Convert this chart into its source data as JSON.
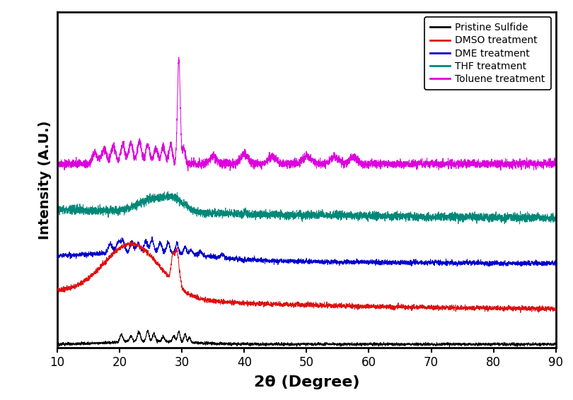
{
  "title": "",
  "xlabel": "2θ (Degree)",
  "ylabel": "Intensity (A.U.)",
  "xlim": [
    10,
    90
  ],
  "legend_labels": [
    "Pristine Sulfide",
    "DMSO treatment",
    "DME treatment",
    "THF treatment",
    "Toluene treatment"
  ],
  "legend_colors": [
    "#000000",
    "#dd1111",
    "#0000cc",
    "#008878",
    "#dd00dd"
  ],
  "background_color": "#ffffff",
  "linewidth": 0.7,
  "seed": 12345,
  "offsets": [
    0.0,
    0.18,
    0.42,
    0.65,
    0.95
  ]
}
